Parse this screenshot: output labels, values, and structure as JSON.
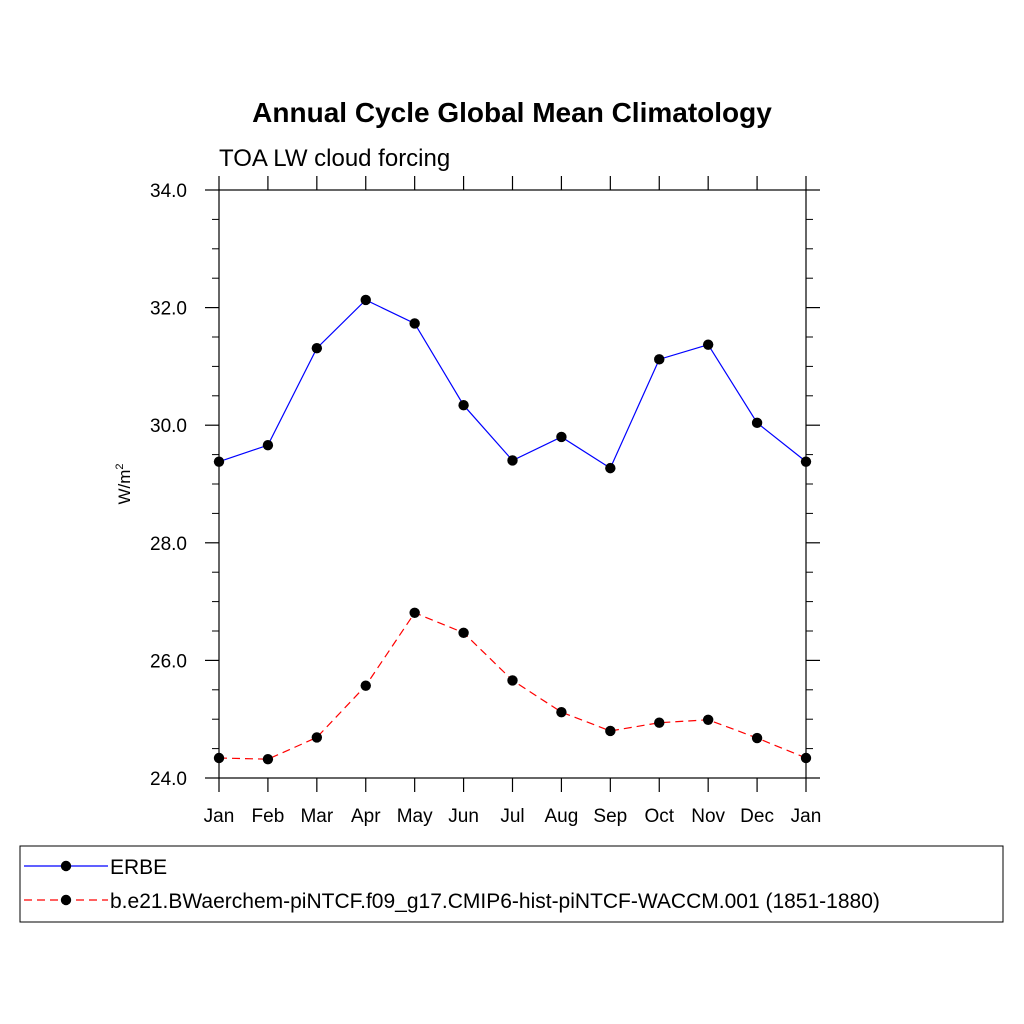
{
  "chart_data": {
    "type": "line",
    "title": "Annual Cycle Global Mean Climatology",
    "subtitle": "TOA LW cloud forcing",
    "xlabel": "",
    "ylabel_base": "W/m",
    "ylabel_sup": "2",
    "categories": [
      "Jan",
      "Feb",
      "Mar",
      "Apr",
      "May",
      "Jun",
      "Jul",
      "Aug",
      "Sep",
      "Oct",
      "Nov",
      "Dec",
      "Jan"
    ],
    "ylim": [
      24.0,
      34.0
    ],
    "yticks": [
      24.0,
      26.0,
      28.0,
      30.0,
      32.0,
      34.0
    ],
    "ytick_labels": [
      "24.0",
      "26.0",
      "28.0",
      "30.0",
      "32.0",
      "34.0"
    ],
    "grid": false,
    "legend_position": "bottom",
    "series": [
      {
        "name": "ERBE",
        "color": "#0000ff",
        "style": "solid",
        "marker": "filled-circle",
        "values": [
          29.38,
          29.66,
          31.31,
          32.13,
          31.73,
          30.34,
          29.4,
          29.8,
          29.27,
          31.12,
          31.37,
          30.04,
          29.38
        ]
      },
      {
        "name": "b.e21.BWaerchem-piNTCF.f09_g17.CMIP6-hist-piNTCF-WACCM.001 (1851-1880)",
        "color": "#ff0000",
        "style": "dashed",
        "marker": "filled-circle",
        "values": [
          24.34,
          24.32,
          24.69,
          25.57,
          26.81,
          26.47,
          25.66,
          25.12,
          24.8,
          24.94,
          24.99,
          24.68,
          24.34
        ]
      }
    ]
  }
}
